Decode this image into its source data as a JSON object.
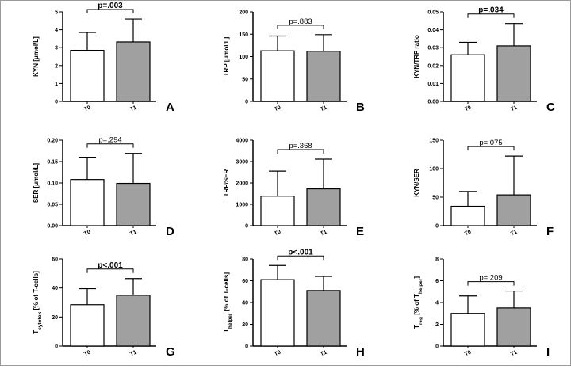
{
  "colors": {
    "t0_fill": "#ffffff",
    "t1_fill": "#a0a0a0",
    "stroke": "#000000",
    "border": "#9a9a9a"
  },
  "chart_data": [
    {
      "type": "bar",
      "panel_letter": "A",
      "categories": [
        "T0",
        "T1"
      ],
      "values": [
        2.85,
        3.32
      ],
      "errors": [
        1.0,
        1.28
      ],
      "ylabel": "KYN [μmol/L]",
      "ylim": [
        0,
        5
      ],
      "yticks": [
        "0",
        "1",
        "2",
        "3",
        "4",
        "5"
      ],
      "tick_values": [
        0,
        1,
        2,
        3,
        4,
        5
      ],
      "pvalue": "p=.003",
      "p_bold": true
    },
    {
      "type": "bar",
      "panel_letter": "B",
      "categories": [
        "T0",
        "T1"
      ],
      "values": [
        113,
        112
      ],
      "errors": [
        33,
        37
      ],
      "ylabel": "TRP [μmol/L]",
      "ylim": [
        0,
        200
      ],
      "yticks": [
        "0",
        "50",
        "100",
        "150",
        "200"
      ],
      "tick_values": [
        0,
        50,
        100,
        150,
        200
      ],
      "pvalue": "p=.883",
      "p_bold": false
    },
    {
      "type": "bar",
      "panel_letter": "C",
      "categories": [
        "T0",
        "T1"
      ],
      "values": [
        0.026,
        0.031
      ],
      "errors": [
        0.007,
        0.0125
      ],
      "ylabel": "KYN/TRP ratio",
      "ylim": [
        0,
        0.05
      ],
      "yticks": [
        "0.00",
        "0.01",
        "0.02",
        "0.03",
        "0.04",
        "0.05"
      ],
      "tick_values": [
        0,
        0.01,
        0.02,
        0.03,
        0.04,
        0.05
      ],
      "pvalue": "p=.034",
      "p_bold": true
    },
    {
      "type": "bar",
      "panel_letter": "D",
      "categories": [
        "T0",
        "T1"
      ],
      "values": [
        0.108,
        0.099
      ],
      "errors": [
        0.052,
        0.07
      ],
      "ylabel": "SER [μmol/L]",
      "ylim": [
        0,
        0.2
      ],
      "yticks": [
        "0.00",
        "0.05",
        "0.10",
        "0.15",
        "0.20"
      ],
      "tick_values": [
        0,
        0.05,
        0.1,
        0.15,
        0.2
      ],
      "pvalue": "p=.294",
      "p_bold": false
    },
    {
      "type": "bar",
      "panel_letter": "E",
      "categories": [
        "T0",
        "T1"
      ],
      "values": [
        1380,
        1720
      ],
      "errors": [
        1170,
        1390
      ],
      "ylabel": "TRP/SER",
      "ylim": [
        0,
        4000
      ],
      "yticks": [
        "0",
        "1000",
        "2000",
        "3000",
        "4000"
      ],
      "tick_values": [
        0,
        1000,
        2000,
        3000,
        4000
      ],
      "pvalue": "p=.368",
      "p_bold": false
    },
    {
      "type": "bar",
      "panel_letter": "F",
      "categories": [
        "T0",
        "T1"
      ],
      "values": [
        34,
        54
      ],
      "errors": [
        26,
        68
      ],
      "ylabel": "KYN/SER",
      "ylim": [
        0,
        150
      ],
      "yticks": [
        "0",
        "50",
        "100",
        "150"
      ],
      "tick_values": [
        0,
        50,
        100,
        150
      ],
      "pvalue": "p=.075",
      "p_bold": false
    },
    {
      "type": "bar",
      "panel_letter": "G",
      "categories": [
        "T0",
        "T1"
      ],
      "values": [
        28.5,
        35
      ],
      "errors": [
        11,
        11.5
      ],
      "ylabel": "T",
      "ylabel_sub": "cytotox",
      "ylabel_rest": " [% of T-cells]",
      "ylim": [
        0,
        60
      ],
      "yticks": [
        "0",
        "20",
        "40",
        "60"
      ],
      "tick_values": [
        0,
        20,
        40,
        60
      ],
      "pvalue": "p<.001",
      "p_bold": true
    },
    {
      "type": "bar",
      "panel_letter": "H",
      "categories": [
        "T0",
        "T1"
      ],
      "values": [
        61,
        51
      ],
      "errors": [
        13,
        13
      ],
      "ylabel": "T",
      "ylabel_sub": "helper",
      "ylabel_rest": " [% of T-cells]",
      "ylim": [
        0,
        80
      ],
      "yticks": [
        "0",
        "20",
        "40",
        "60",
        "80"
      ],
      "tick_values": [
        0,
        20,
        40,
        60,
        80
      ],
      "pvalue": "p<.001",
      "p_bold": true
    },
    {
      "type": "bar",
      "panel_letter": "I",
      "categories": [
        "T0",
        "T1"
      ],
      "values": [
        3.0,
        3.5
      ],
      "errors": [
        1.6,
        1.55
      ],
      "ylabel": "T",
      "ylabel_sub": "reg",
      "ylabel_rest": " [% of T",
      "ylabel_sub2": "helper",
      "ylabel_end": "]",
      "ylim": [
        0,
        8
      ],
      "yticks": [
        "0",
        "2",
        "4",
        "6",
        "8"
      ],
      "tick_values": [
        0,
        2,
        4,
        6,
        8
      ],
      "pvalue": "p=.209",
      "p_bold": false
    }
  ]
}
